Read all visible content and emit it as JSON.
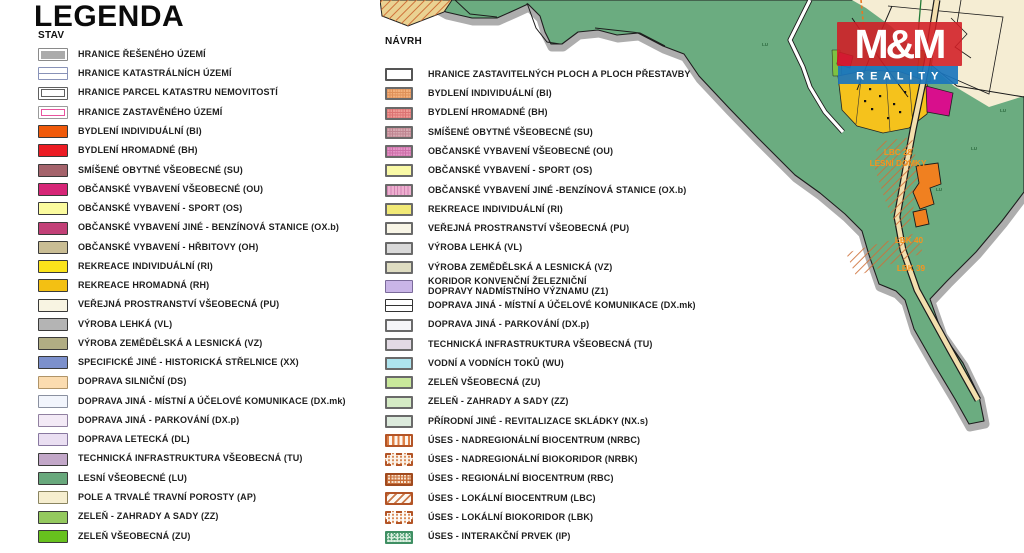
{
  "legend": {
    "title": "LEGENDA",
    "stav": {
      "heading": "STAV",
      "items": [
        {
          "label": "HRANICE ŘEŠENÉHO ÚZEMÍ",
          "kind": "innerbox",
          "bg": "#ffffff",
          "bc": "#8a8a8a",
          "pc": "#ababab"
        },
        {
          "label": "HRANICE KATASTRÁLNÍCH ÚZEMÍ",
          "kind": "katastr",
          "bg": "#ffffff",
          "bc": "#8892b8",
          "pc": "#8892b8"
        },
        {
          "label": "HRANICE PARCEL KATASTRU NEMOVITOSTÍ",
          "kind": "doublebox",
          "bg": "#ffffff",
          "bc": "#606060",
          "pc": "#606060"
        },
        {
          "label": "HRANICE ZASTAVĚNÉHO ÚZEMÍ",
          "kind": "innerline",
          "bg": "#ffffff",
          "bc": "#9a9a9a",
          "pc": "#e9549e"
        },
        {
          "label": "BYDLENÍ INDIVIDUÁLNÍ (BI)",
          "kind": "solid",
          "bg": "#f05a0a"
        },
        {
          "label": "BYDLENÍ HROMADNÉ (BH)",
          "kind": "solid",
          "bg": "#ec1c24"
        },
        {
          "label": "SMÍŠENÉ OBYTNÉ VŠEOBECNÉ (SU)",
          "kind": "solid",
          "bg": "#a4636b"
        },
        {
          "label": "OBČANSKÉ VYBAVENÍ VŠEOBECNÉ (OU)",
          "kind": "solid",
          "bg": "#d62677"
        },
        {
          "label": "OBČANSKÉ VYBAVENÍ - SPORT (OS)",
          "kind": "solid",
          "bg": "#fbfb9e"
        },
        {
          "label": "OBČANSKÉ VYBAVENÍ JINÉ - BENZÍNOVÁ STANICE (OX.b)",
          "kind": "solid",
          "bg": "#c24077"
        },
        {
          "label": "OBČANSKÉ VYBAVENÍ - HŘBITOVY (OH)",
          "kind": "solid",
          "bg": "#c9bd94"
        },
        {
          "label": "REKREACE INDIVIDUÁLNÍ (RI)",
          "kind": "solid",
          "bg": "#fbe41b"
        },
        {
          "label": "REKREACE HROMADNÁ (RH)",
          "kind": "solid",
          "bg": "#f3c013"
        },
        {
          "label": "VEŘEJNÁ PROSTRANSTVÍ VŠEOBECNÁ (PU)",
          "kind": "solid",
          "bg": "#f8f4e2"
        },
        {
          "label": "VÝROBA LEHKÁ (VL)",
          "kind": "solid",
          "bg": "#b4b4b4"
        },
        {
          "label": "VÝROBA ZEMĚDĚLSKÁ A LESNICKÁ (VZ)",
          "kind": "solid",
          "bg": "#b1ad83"
        },
        {
          "label": "SPECIFICKÉ JINÉ - HISTORICKÁ STŘELNICE (XX)",
          "kind": "solid",
          "bg": "#7c90cc"
        },
        {
          "label": "DOPRAVA SILNIČNÍ (DS)",
          "kind": "solid",
          "bg": "#fbdcb0",
          "bc": "#b09468"
        },
        {
          "label": "DOPRAVA JINÁ - MÍSTNÍ A ÚČELOVÉ KOMUNIKACE (DX.mk)",
          "kind": "solid",
          "bg": "#f2f5fc",
          "bc": "#8a90a0"
        },
        {
          "label": "DOPRAVA JINÁ - PARKOVÁNÍ (DX.p)",
          "kind": "solid",
          "bg": "#f3eaf6",
          "bc": "#9080a0"
        },
        {
          "label": "DOPRAVA LETECKÁ (DL)",
          "kind": "solid",
          "bg": "#eadff2",
          "bc": "#8878a0"
        },
        {
          "label": "TECHNICKÁ INFRASTRUKTURA VŠEOBECNÁ (TU)",
          "kind": "solid",
          "bg": "#c2a7c8"
        },
        {
          "label": "LESNÍ VŠEOBECNÉ (LU)",
          "kind": "solid",
          "bg": "#68a87c"
        },
        {
          "label": "POLE A TRVALÉ TRAVNÍ POROSTY (AP)",
          "kind": "solid",
          "bg": "#f6eecf",
          "bc": "#8a8460"
        },
        {
          "label": "ZELEŇ - ZAHRADY A SADY (ZZ)",
          "kind": "solid",
          "bg": "#94c95e"
        },
        {
          "label": "ZELEŇ VŠEOBECNÁ (ZU)",
          "kind": "solid",
          "bg": "#67c11e"
        }
      ]
    },
    "navrh": {
      "heading": "NÁVRH",
      "items": [
        {
          "label": "HRANICE ZASTAVITELNÝCH PLOCH A PLOCH PŘESTAVBY",
          "kind": "solid",
          "bg": "#ffffff",
          "bw": 2,
          "bc": "#555555"
        },
        {
          "label": "BYDLENÍ INDIVIDUÁLNÍ (BI)",
          "kind": "grid",
          "bg": "#f2b17c",
          "pc": "#de9058",
          "bw": 2,
          "bc": "#6a6a6a"
        },
        {
          "label": "BYDLENÍ HROMADNÉ (BH)",
          "kind": "grid",
          "bg": "#ee9b95",
          "pc": "#dc7272",
          "bw": 2,
          "bc": "#6a6a6a"
        },
        {
          "label": "SMÍŠENÉ OBYTNÉ VŠEOBECNÉ (SU)",
          "kind": "grid",
          "bg": "#d5a9b1",
          "pc": "#be8490",
          "bw": 2,
          "bc": "#6a6a6a"
        },
        {
          "label": "OBČANSKÉ VYBAVENÍ VŠEOBECNÉ (OU)",
          "kind": "grid",
          "bg": "#e394c6",
          "pc": "#cc6ea8",
          "bw": 2,
          "bc": "#6a6a6a"
        },
        {
          "label": "OBČANSKÉ VYBAVENÍ - SPORT (OS)",
          "kind": "solid",
          "bg": "#f9f9a6",
          "bw": 2,
          "bc": "#6a6a6a"
        },
        {
          "label": "OBČANSKÉ VYBAVENÍ JINÉ -BENZÍNOVÁ STANICE (OX.b)",
          "kind": "vstripe",
          "bg": "#edafcf",
          "pc": "#d486b4",
          "bw": 2,
          "bc": "#6a6a6a"
        },
        {
          "label": "REKREACE INDIVIDUÁLNÍ (RI)",
          "kind": "solid",
          "bg": "#f1e976",
          "bw": 2,
          "bc": "#6a6a6a"
        },
        {
          "label": "VEŘEJNÁ PROSTRANSTVÍ VŠEOBECNÁ (PU)",
          "kind": "solid",
          "bg": "#f8f5e6",
          "bw": 2,
          "bc": "#6a6a6a"
        },
        {
          "label": "VÝROBA LEHKÁ (VL)",
          "kind": "solid",
          "bg": "#d9d9d9",
          "bw": 2,
          "bc": "#6a6a6a"
        },
        {
          "label": "VÝROBA ZEMĚDĚLSKÁ A LESNICKÁ (VZ)",
          "kind": "solid",
          "bg": "#dedcc1",
          "bw": 2,
          "bc": "#6a6a6a"
        },
        {
          "label": "KORIDOR KONVENČNÍ ŽELEZNIČNÍ\nDOPRAVY NADMÍSTNÍHO VÝZNAMU (Z1)",
          "kind": "solid",
          "bg": "#c9b5e7",
          "bw": 1,
          "bc": "#7a6a9a"
        },
        {
          "label": "DOPRAVA JINÁ - MÍSTNÍ A ÚČELOVÉ KOMUNIKACE (DX.mk)",
          "kind": "road",
          "bg": "#ffffff",
          "pc": "#333333",
          "bw": 1.5,
          "bc": "#333333"
        },
        {
          "label": "DOPRAVA JINÁ - PARKOVÁNÍ (DX.p)",
          "kind": "solid",
          "bg": "#f5f5f8",
          "bw": 2,
          "bc": "#6a6a6a"
        },
        {
          "label": "TECHNICKÁ INFRASTRUKTURA VŠEOBECNÁ (TU)",
          "kind": "solid",
          "bg": "#e2dae4",
          "bw": 2,
          "bc": "#6a6a6a"
        },
        {
          "label": "VODNÍ A VODNÍCH TOKŮ (WU)",
          "kind": "solid",
          "bg": "#aee4ee",
          "bw": 2,
          "bc": "#6a6a6a"
        },
        {
          "label": "ZELEŇ VŠEOBECNÁ (ZU)",
          "kind": "solid",
          "bg": "#c9e89b",
          "bw": 2,
          "bc": "#6a6a6a"
        },
        {
          "label": "ZELEŇ - ZAHRADY A SADY (ZZ)",
          "kind": "solid",
          "bg": "#d5ebc5",
          "bw": 2,
          "bc": "#6a6a6a"
        },
        {
          "label": "PŘÍRODNÍ JINÉ - REVITALIZACE SKLÁDKY (NX.s)",
          "kind": "solid",
          "bg": "#dceadc",
          "bw": 2,
          "bc": "#6a6a6a"
        },
        {
          "label": "ÚSES - NADREGIONÁLNÍ BIOCENTRUM (NRBC)",
          "kind": "vbars",
          "bg": "#fdf6ee",
          "pc": "#de7f45",
          "bw": 2,
          "bc": "#b35426"
        },
        {
          "label": "ÚSES - NADREGIONÁLNÍ BIOKORIDOR (NRBK)",
          "kind": "dots",
          "bg": "#fbf3ea",
          "pc": "#d88a56",
          "bw": 2,
          "bc": "#b35426",
          "bs": "dashed"
        },
        {
          "label": "ÚSES - REGIONÁLNÍ BIOCENTRUM (RBC)",
          "kind": "grid2",
          "bg": "#f6e3ce",
          "pc": "#c96f3a",
          "bw": 2,
          "bc": "#a04a1e"
        },
        {
          "label": "ÚSES - LOKÁLNÍ BIOCENTRUM (LBC)",
          "kind": "diag",
          "bg": "#fdf8f2",
          "pc": "#c97848",
          "bw": 2,
          "bc": "#b35426"
        },
        {
          "label": "ÚSES - LOKÁLNÍ BIOKORIDOR (LBK)",
          "kind": "dots",
          "bg": "#fdfaf6",
          "pc": "#d88a56",
          "bw": 2,
          "bc": "#b35426",
          "bs": "dashed"
        },
        {
          "label": "ÚSES - INTERAKČNÍ PRVEK (IP)",
          "kind": "speckle",
          "bg": "#dff0e2",
          "pc": "#4c9e72",
          "bw": 2,
          "bc": "#3f8f63"
        }
      ]
    }
  },
  "map": {
    "labels": {
      "lu": "LU",
      "lbc": "LBC 28",
      "lesni_domky": "LESNÍ DOMKY",
      "lbk40": "LBK 40",
      "lbk39": "LBK 39"
    },
    "logo": {
      "name": "M&M",
      "reality": "R E A L I T Y",
      "red": "#d21c24",
      "blue": "#1a75bd"
    },
    "colors": {
      "forest": "#6bac80",
      "shadow": "#adadad",
      "fields": "#f5edd3",
      "recreation": "#f5c21c",
      "civic": "#d80f8c",
      "greenery": "#7dc242",
      "road": "#f3dfae",
      "hatch_base": "#ead292",
      "buildings": "#f08020",
      "label_orange": "#f7941d",
      "label_green": "#2e6b40"
    }
  }
}
